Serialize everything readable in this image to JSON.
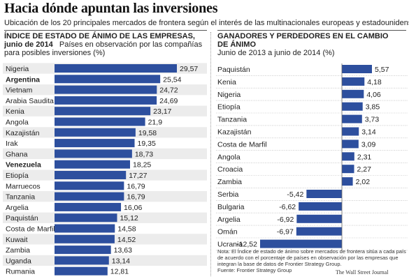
{
  "header": {
    "title": "Hacia dónde apuntan las inversiones",
    "subtitle": "Ubicación de los 20 principales mercados de frontera según el interés de las multinacionales europeas y estadounidenses."
  },
  "left_panel": {
    "heading": "ÍNDICE DE ESTADO DE ÁNIMO DE LAS EMPRESAS,",
    "subheading_bold": "junio de 2014",
    "subheading_rest": "Países en observación por las compañías",
    "subheading_line3": "para posibles inversiones (%)"
  },
  "right_panel": {
    "heading_line1": "GANADORES Y PERDEDORES EN EL CAMBIO",
    "heading_line2": "DE ÁNIMO",
    "subheading": "Junio de 2013 a junio de 2014 (%)"
  },
  "note": "Nota: El Índice de estado de ánimo sobre mercados de frontera sitúa a cada país de acuerdo con el porcentaje de países en observación por las empresas que integran la base de datos de Frontier Strategy Group.",
  "source": "Fuente: Frontier Strategy Group",
  "credit": "The Wall Street Journal",
  "colors": {
    "bar": "#2d4f9e",
    "text": "#222222"
  },
  "chart_data": [
    {
      "type": "bar",
      "orientation": "horizontal",
      "categories": [
        "Nigeria",
        "Argentina",
        "Vietnam",
        "Arabia Saudita",
        "Kenia",
        "Angola",
        "Kazajistán",
        "Irak",
        "Ghana",
        "Venezuela",
        "Etiopía",
        "Marruecos",
        "Tanzania",
        "Argelia",
        "Paquistán",
        "Costa de Marfil",
        "Kuwait",
        "Zambia",
        "Uganda",
        "Rumania"
      ],
      "bold_categories": [
        "Argentina",
        "Venezuela"
      ],
      "values": [
        29.57,
        25.54,
        24.72,
        24.69,
        23.17,
        21.9,
        19.58,
        19.35,
        18.73,
        18.25,
        17.27,
        16.79,
        16.79,
        16.06,
        15.12,
        14.58,
        14.52,
        13.63,
        13.14,
        12.81
      ],
      "labels": [
        "29,57",
        "25,54",
        "24,72",
        "24,69",
        "23,17",
        "21,9",
        "19,58",
        "19,35",
        "18,73",
        "18,25",
        "17,27",
        "16,79",
        "16,79",
        "16,06",
        "15,12",
        "14,58",
        "14,52",
        "13,63",
        "13,14",
        "12,81"
      ],
      "xlim": [
        0,
        29.57
      ]
    },
    {
      "type": "bar",
      "orientation": "horizontal",
      "categories": [
        "Paquistán",
        "Kenia",
        "Nigeria",
        "Etiopía",
        "Tanzania",
        "Kazajistán",
        "Costa de Marfil",
        "Angola",
        "Croacia",
        "Zambia",
        "Serbia",
        "Bulgaria",
        "Argelia",
        "Omán",
        "Ucrania"
      ],
      "values": [
        5.57,
        4.18,
        4.06,
        3.85,
        3.73,
        3.14,
        3.09,
        2.31,
        2.27,
        2.02,
        -5.42,
        -6.62,
        -6.92,
        -6.97,
        -12.52
      ],
      "labels": [
        "5,57",
        "4,18",
        "4,06",
        "3,85",
        "3,73",
        "3,14",
        "3,09",
        "2,31",
        "2,27",
        "2,02",
        "-5,42",
        "-6,62",
        "-6,92",
        "-6,97",
        "-12,52"
      ],
      "xlim": [
        -12.52,
        5.57
      ]
    }
  ]
}
